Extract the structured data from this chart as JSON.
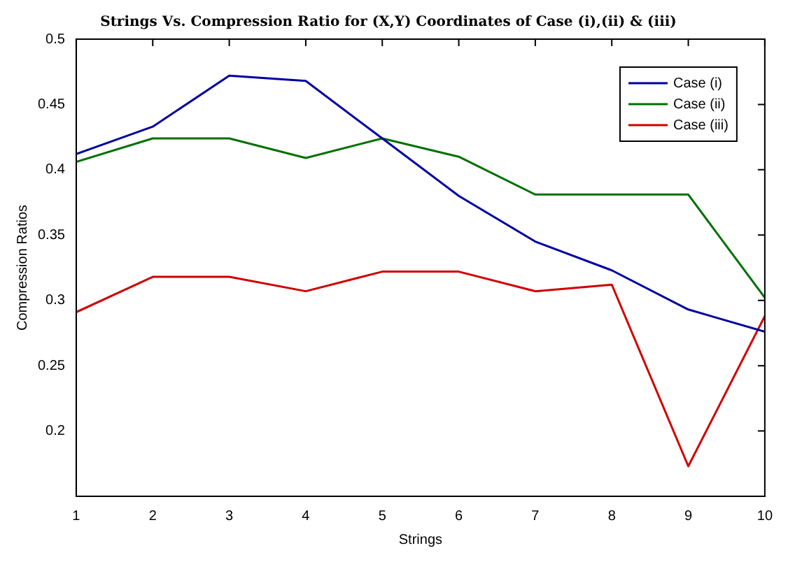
{
  "chart_data": {
    "type": "line",
    "title": "Strings Vs. Compression Ratio for (X,Y) Coordinates of Case (i),(ii) & (iii)",
    "xlabel": "Strings",
    "ylabel": "Compression Ratios",
    "x": [
      1,
      2,
      3,
      4,
      5,
      6,
      7,
      8,
      9,
      10
    ],
    "series": [
      {
        "name": "Case (i)",
        "color": "#0000a0",
        "values": [
          0.412,
          0.433,
          0.472,
          0.468,
          0.424,
          0.38,
          0.345,
          0.323,
          0.293,
          0.276
        ]
      },
      {
        "name": "Case (ii)",
        "color": "#007000",
        "values": [
          0.406,
          0.424,
          0.424,
          0.409,
          0.424,
          0.41,
          0.381,
          0.381,
          0.381,
          0.302
        ]
      },
      {
        "name": "Case (iii)",
        "color": "#d00000",
        "values": [
          0.291,
          0.318,
          0.318,
          0.307,
          0.322,
          0.322,
          0.307,
          0.312,
          0.173,
          0.288
        ]
      }
    ],
    "xlim": [
      1,
      10
    ],
    "xticks": [
      1,
      2,
      3,
      4,
      5,
      6,
      7,
      8,
      9,
      10
    ],
    "ylim": [
      0.15,
      0.5
    ],
    "yticks": [
      0.2,
      0.25,
      0.3,
      0.35,
      0.4,
      0.45,
      0.5
    ],
    "grid": false,
    "legend": "top right",
    "marker": "none",
    "line_style": "solid"
  }
}
